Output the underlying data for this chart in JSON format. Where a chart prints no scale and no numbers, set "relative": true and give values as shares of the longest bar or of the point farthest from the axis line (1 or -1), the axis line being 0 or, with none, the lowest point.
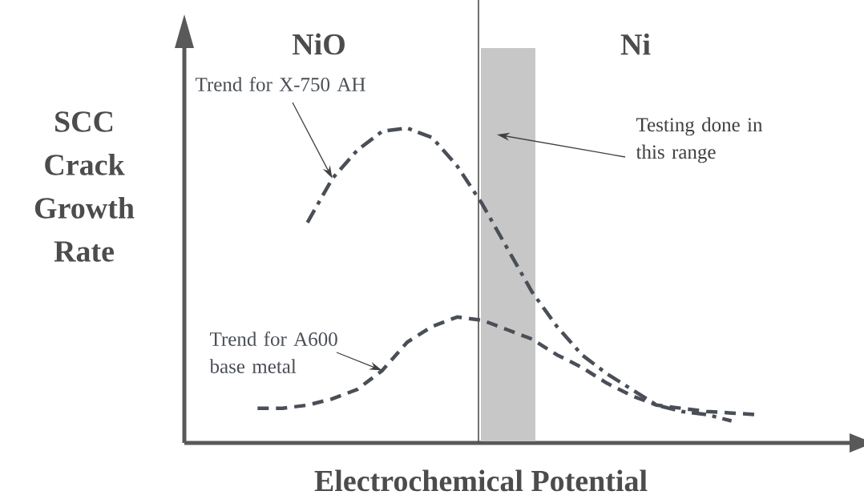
{
  "chart_data": {
    "type": "line",
    "relative": true,
    "xlabel": "Electrochemical Potential",
    "ylabel": "SCC Crack Growth Rate",
    "marker": "none",
    "categories": [
      null,
      null,
      null,
      null,
      null,
      null,
      null,
      null,
      null,
      null,
      null,
      null,
      null,
      null,
      null,
      null,
      null,
      null,
      null,
      null,
      null
    ],
    "series": [
      {
        "name": "Trend for X-750 AH",
        "color": "#4a4f57",
        "line_style": "dashdot",
        "values": [
          null,
          null,
          0.7,
          0.84,
          0.93,
          0.99,
          1,
          0.97,
          0.88,
          0.76,
          0.62,
          0.48,
          0.37,
          0.28,
          0.22,
          0.17,
          0.12,
          0.1,
          0.09,
          0.07,
          null
        ]
      },
      {
        "name": "Trend for A600 base metal",
        "color": "#4a4f57",
        "line_style": "dashed",
        "values": [
          0.11,
          0.11,
          0.12,
          0.14,
          0.17,
          0.23,
          0.32,
          0.37,
          0.4,
          0.39,
          0.36,
          0.33,
          0.28,
          0.24,
          0.19,
          0.15,
          0.12,
          0.11,
          0.1,
          0.095,
          0.09
        ]
      }
    ],
    "annotations": [
      "NiO",
      "Ni",
      "Testing done in this range"
    ]
  }
}
